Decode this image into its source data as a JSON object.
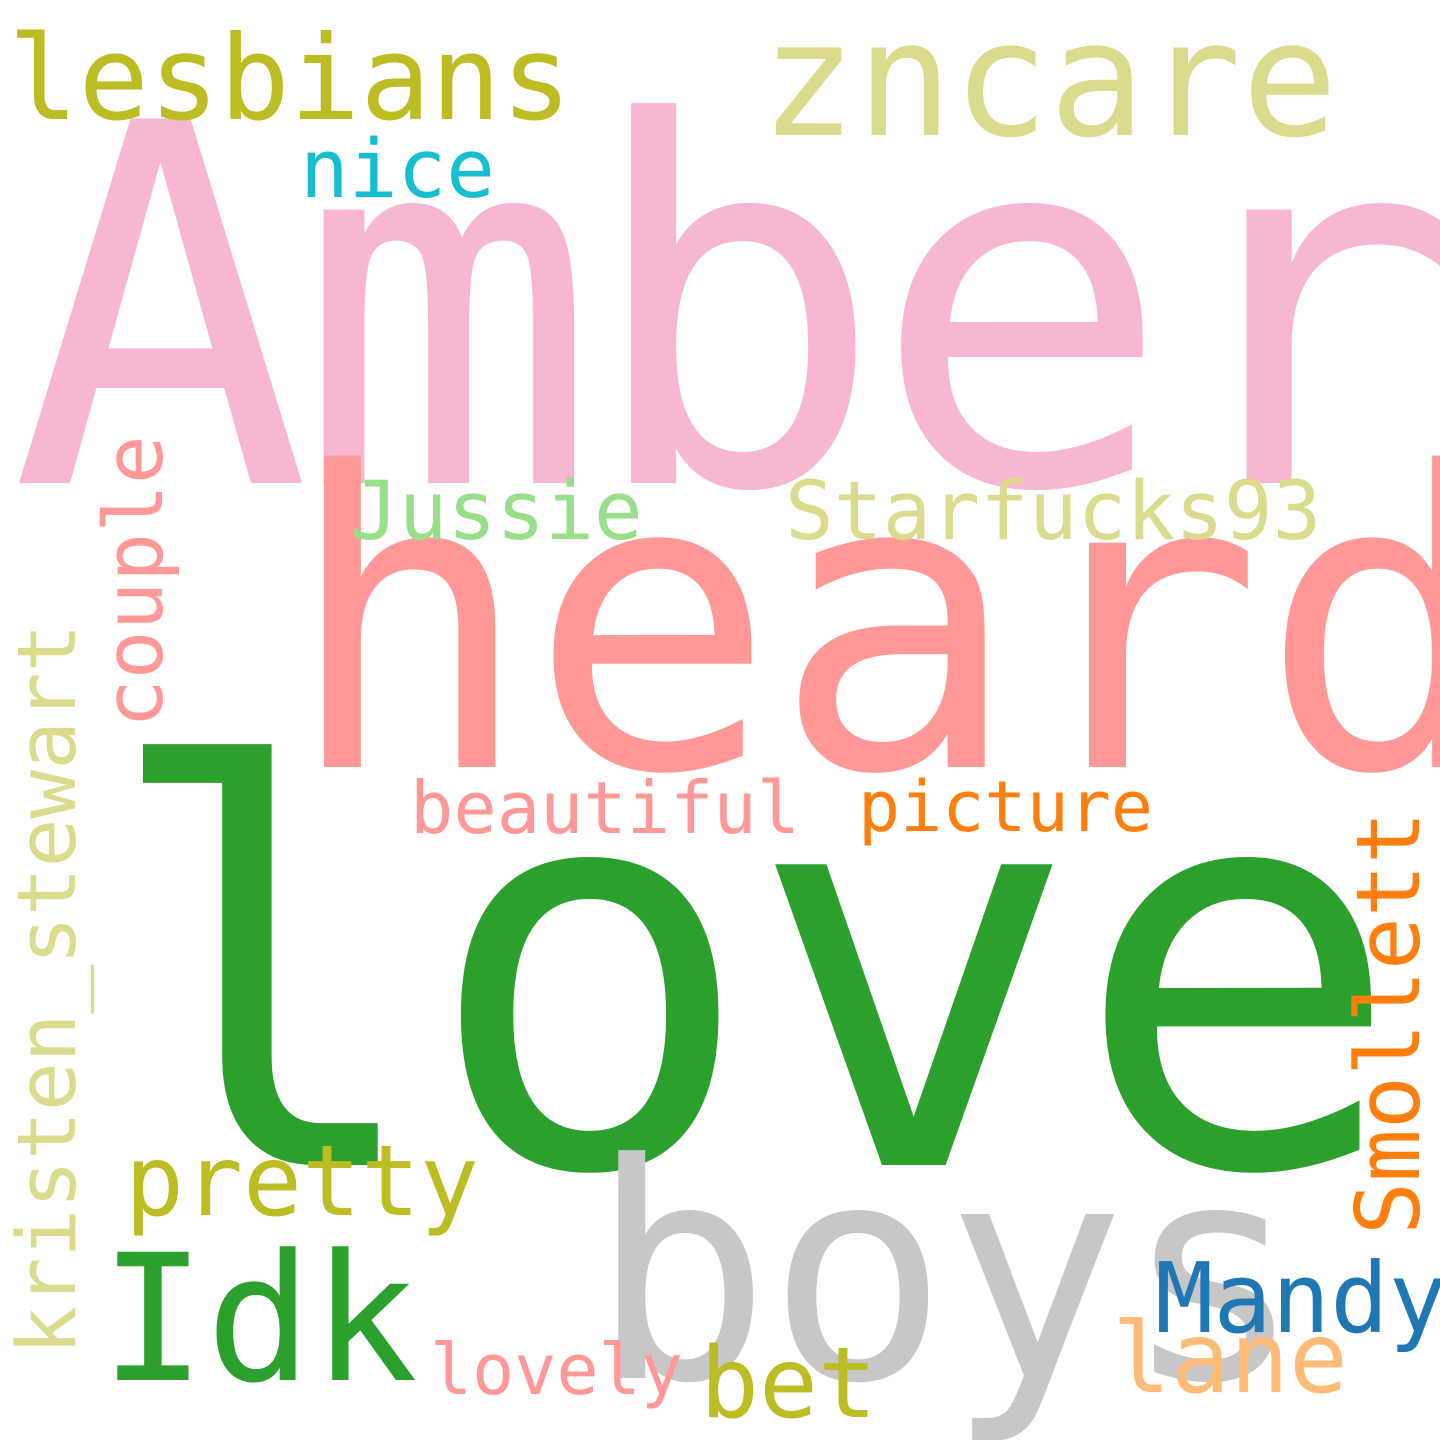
{
  "words": {
    "amber": {
      "text": "Amber",
      "color": "#f7b6d2"
    },
    "heard": {
      "text": "heard",
      "color": "#ff9896"
    },
    "love": {
      "text": "love",
      "color": "#2ca02c"
    },
    "boys": {
      "text": "boys",
      "color": "#c7c7c7"
    },
    "zncare": {
      "text": "zncare",
      "color": "#dbdb8d"
    },
    "lesbians": {
      "text": "lesbians",
      "color": "#bcbd22"
    },
    "nice": {
      "text": "nice",
      "color": "#17becf"
    },
    "jussie": {
      "text": "Jussie",
      "color": "#98df8a"
    },
    "starfucks93": {
      "text": "Starfucks93",
      "color": "#dbdb8d"
    },
    "couple": {
      "text": "couple",
      "color": "#ff9896"
    },
    "kristen_stewart": {
      "text": "kristen_stewart",
      "color": "#dbdb8d"
    },
    "beautiful": {
      "text": "beautiful",
      "color": "#ff9896"
    },
    "picture": {
      "text": "picture",
      "color": "#ff7f0e"
    },
    "smollett": {
      "text": "Smollett",
      "color": "#ff7f0e"
    },
    "pretty": {
      "text": "pretty",
      "color": "#bcbd22"
    },
    "idk": {
      "text": "Idk",
      "color": "#2ca02c"
    },
    "mandy": {
      "text": "Mandy",
      "color": "#1f77b4"
    },
    "lovely": {
      "text": "lovely",
      "color": "#ff9896"
    },
    "bet": {
      "text": "bet",
      "color": "#bcbd22"
    },
    "lane": {
      "text": "lane",
      "color": "#ffbb78"
    }
  }
}
